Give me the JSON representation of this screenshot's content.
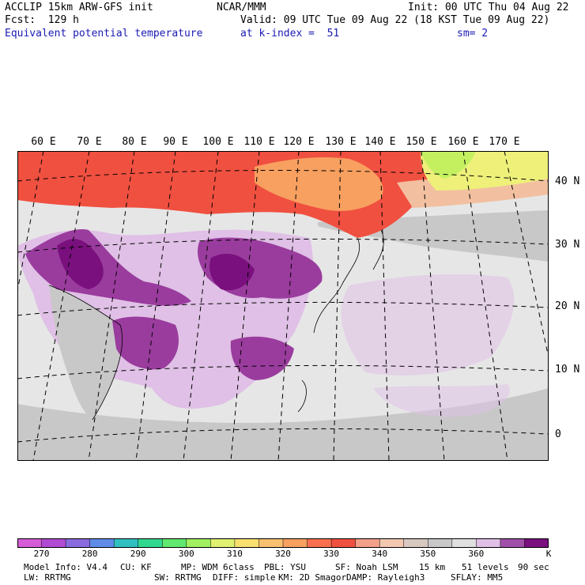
{
  "header": {
    "left_line1": "ACCLIP 15km ARW-GFS init",
    "left_line2": "Fcst:  129 h",
    "left_line3": "Equivalent potential temperature",
    "center_line1": "NCAR/MMM",
    "init_line": "Init: 00 UTC Thu 04 Aug 22",
    "valid_line": "Valid: 09 UTC Tue 09 Aug 22 (18 KST Tue 09 Aug 22)",
    "level_line": "at k-index =  51",
    "smooth_line": "sm= 2"
  },
  "map": {
    "lon_labels": [
      "60 E",
      "70 E",
      "80 E",
      "90 E",
      "100 E",
      "110 E",
      "120 E",
      "130 E",
      "140 E",
      "150 E",
      "160 E",
      "170 E"
    ],
    "lat_labels": [
      "40 N",
      "30 N",
      "20 N",
      "10 N",
      "0"
    ],
    "colors": {
      "ocean": "#e6e6e6",
      "land_gray": "#c8c8c8",
      "light_purple": "#e0c0e6",
      "mid_purple": "#9a3c9e",
      "dark_purple": "#7a107e",
      "red": "#f05040",
      "orange": "#f8a060",
      "salmon": "#f2c0a0",
      "yellow": "#eef07a",
      "lime": "#c4f060",
      "grid": "#000000"
    }
  },
  "colorbar": {
    "colors": [
      "#d55cd6",
      "#b04cd4",
      "#8a6ce0",
      "#5e8ce8",
      "#30c0c0",
      "#30d890",
      "#60e870",
      "#a0f060",
      "#e0f070",
      "#f8e070",
      "#f8c070",
      "#f8a060",
      "#f87050",
      "#f05040",
      "#f2a08a",
      "#f2c8b0",
      "#d8c8c0",
      "#c8c8c8",
      "#e0e0e0",
      "#e0c0e6",
      "#a050a8",
      "#7a107e"
    ],
    "tick_labels": [
      "270",
      "280",
      "290",
      "300",
      "310",
      "320",
      "330",
      "340",
      "350",
      "360"
    ],
    "unit": "K"
  },
  "footer": {
    "line1": [
      "Model Info: V4.4",
      "CU: KF",
      "MP: WDM 6class",
      "PBL: YSU",
      "SF: Noah LSM",
      "15 km",
      "51 levels",
      "90 sec"
    ],
    "line2": [
      "LW: RRTMG",
      "SW: RRTMG",
      "DIFF: simple",
      "KM: 2D Smagor",
      "DAMP: Rayleigh3",
      "SFLAY: MM5"
    ]
  }
}
